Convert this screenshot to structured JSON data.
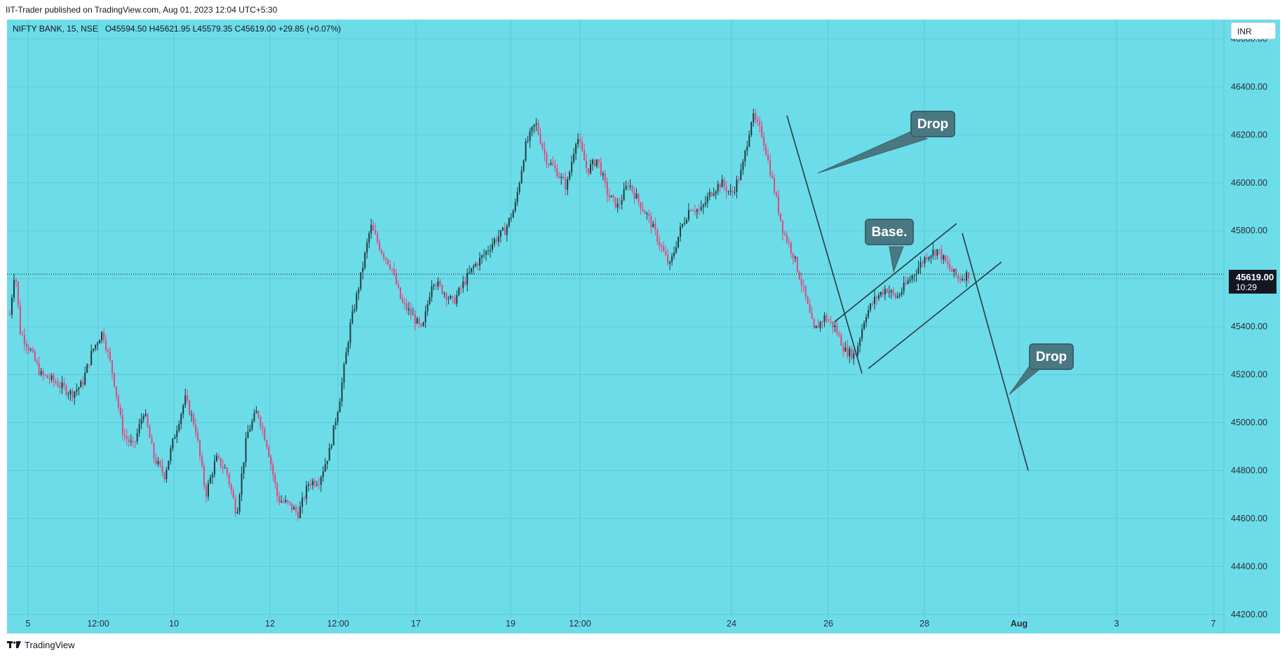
{
  "header": {
    "published_text": "IIT-Trader published on TradingView.com, Aug 01, 2023 12:04 UTC+5:30"
  },
  "legend": {
    "symbol": "NIFTY BANK, 15, NSE",
    "ohlc": "O45594.50 H45621.95 L45579.35 C45619.00 +29.85 (+0.07%)"
  },
  "currency_button": "INR",
  "price_label": {
    "value": "45619.00",
    "countdown": "10:29"
  },
  "annotations": [
    {
      "text": "Drop"
    },
    {
      "text": "Base."
    },
    {
      "text": "Drop"
    }
  ],
  "footer": {
    "brand": "TradingView"
  },
  "colors": {
    "background": "#6cdce9",
    "up_candle": "#1f3b3f",
    "down_candle": "#e0467c",
    "callout": "#4a7882",
    "drawing_line": "#2b3a40"
  },
  "chart_data": {
    "type": "candlestick",
    "symbol": "NIFTY BANK",
    "timeframe": "15",
    "exchange": "NSE",
    "last_price": 45619.0,
    "ylim": [
      44150,
      46680
    ],
    "y_ticks": [
      46600,
      46400,
      46200,
      46000,
      45800,
      45600,
      45400,
      45200,
      45000,
      44800,
      44600,
      44400,
      44200
    ],
    "x_tick_labels": [
      "5",
      "12:00",
      "10",
      "12",
      "12:00",
      "17",
      "19",
      "12:00",
      "24",
      "26",
      "28",
      "Aug",
      "3",
      "7"
    ],
    "price_path": [
      {
        "t": 0,
        "p": 45450
      },
      {
        "t": 0.5,
        "p": 45650
      },
      {
        "t": 1,
        "p": 45380
      },
      {
        "t": 2,
        "p": 45300
      },
      {
        "t": 3,
        "p": 45200
      },
      {
        "t": 4,
        "p": 45180
      },
      {
        "t": 5,
        "p": 45150
      },
      {
        "t": 6,
        "p": 45120
      },
      {
        "t": 7,
        "p": 45160
      },
      {
        "t": 8,
        "p": 45300
      },
      {
        "t": 9,
        "p": 45380
      },
      {
        "t": 10,
        "p": 45200
      },
      {
        "t": 11,
        "p": 44950
      },
      {
        "t": 12,
        "p": 44900
      },
      {
        "t": 13,
        "p": 45050
      },
      {
        "t": 14,
        "p": 44850
      },
      {
        "t": 15,
        "p": 44780
      },
      {
        "t": 16,
        "p": 44950
      },
      {
        "t": 17,
        "p": 45100
      },
      {
        "t": 18,
        "p": 44980
      },
      {
        "t": 19,
        "p": 44700
      },
      {
        "t": 20,
        "p": 44850
      },
      {
        "t": 21,
        "p": 44800
      },
      {
        "t": 22,
        "p": 44620
      },
      {
        "t": 23,
        "p": 44950
      },
      {
        "t": 24,
        "p": 45050
      },
      {
        "t": 25,
        "p": 44900
      },
      {
        "t": 26,
        "p": 44680
      },
      {
        "t": 27,
        "p": 44660
      },
      {
        "t": 28,
        "p": 44620
      },
      {
        "t": 29,
        "p": 44750
      },
      {
        "t": 30,
        "p": 44760
      },
      {
        "t": 31,
        "p": 44880
      },
      {
        "t": 32,
        "p": 45100
      },
      {
        "t": 33,
        "p": 45400
      },
      {
        "t": 34,
        "p": 45600
      },
      {
        "t": 35,
        "p": 45820
      },
      {
        "t": 36,
        "p": 45720
      },
      {
        "t": 37,
        "p": 45650
      },
      {
        "t": 38,
        "p": 45500
      },
      {
        "t": 39,
        "p": 45450
      },
      {
        "t": 40,
        "p": 45380
      },
      {
        "t": 41,
        "p": 45600
      },
      {
        "t": 42,
        "p": 45550
      },
      {
        "t": 43,
        "p": 45500
      },
      {
        "t": 44,
        "p": 45580
      },
      {
        "t": 45,
        "p": 45650
      },
      {
        "t": 46,
        "p": 45700
      },
      {
        "t": 47,
        "p": 45760
      },
      {
        "t": 48,
        "p": 45800
      },
      {
        "t": 49,
        "p": 45900
      },
      {
        "t": 50,
        "p": 46150
      },
      {
        "t": 51,
        "p": 46250
      },
      {
        "t": 52,
        "p": 46100
      },
      {
        "t": 53,
        "p": 46050
      },
      {
        "t": 54,
        "p": 45980
      },
      {
        "t": 55,
        "p": 46200
      },
      {
        "t": 56,
        "p": 46050
      },
      {
        "t": 57,
        "p": 46100
      },
      {
        "t": 58,
        "p": 45950
      },
      {
        "t": 59,
        "p": 45900
      },
      {
        "t": 60,
        "p": 46000
      },
      {
        "t": 61,
        "p": 45920
      },
      {
        "t": 62,
        "p": 45850
      },
      {
        "t": 63,
        "p": 45750
      },
      {
        "t": 64,
        "p": 45650
      },
      {
        "t": 65,
        "p": 45800
      },
      {
        "t": 66,
        "p": 45900
      },
      {
        "t": 67,
        "p": 45880
      },
      {
        "t": 68,
        "p": 45960
      },
      {
        "t": 69,
        "p": 46000
      },
      {
        "t": 70,
        "p": 45950
      },
      {
        "t": 71,
        "p": 46050
      },
      {
        "t": 72,
        "p": 46280
      },
      {
        "t": 73,
        "p": 46200
      },
      {
        "t": 74,
        "p": 46000
      },
      {
        "t": 75,
        "p": 45800
      },
      {
        "t": 76,
        "p": 45700
      },
      {
        "t": 77,
        "p": 45550
      },
      {
        "t": 78,
        "p": 45380
      },
      {
        "t": 79,
        "p": 45440
      },
      {
        "t": 80,
        "p": 45400
      },
      {
        "t": 81,
        "p": 45300
      },
      {
        "t": 82,
        "p": 45280
      },
      {
        "t": 83,
        "p": 45450
      },
      {
        "t": 84,
        "p": 45520
      },
      {
        "t": 85,
        "p": 45560
      },
      {
        "t": 86,
        "p": 45520
      },
      {
        "t": 87,
        "p": 45580
      },
      {
        "t": 88,
        "p": 45640
      },
      {
        "t": 89,
        "p": 45700
      },
      {
        "t": 90,
        "p": 45720
      },
      {
        "t": 91,
        "p": 45650
      },
      {
        "t": 92,
        "p": 45600
      },
      {
        "t": 93,
        "p": 45619
      }
    ],
    "drawings": {
      "channel_upper": [
        [
          45420,
          45830
        ]
      ],
      "channel_lower": [
        [
          45225,
          45670
        ]
      ],
      "drop_line_1": [
        46280,
        45205
      ],
      "drop_line_2": [
        45790,
        44800
      ]
    }
  }
}
